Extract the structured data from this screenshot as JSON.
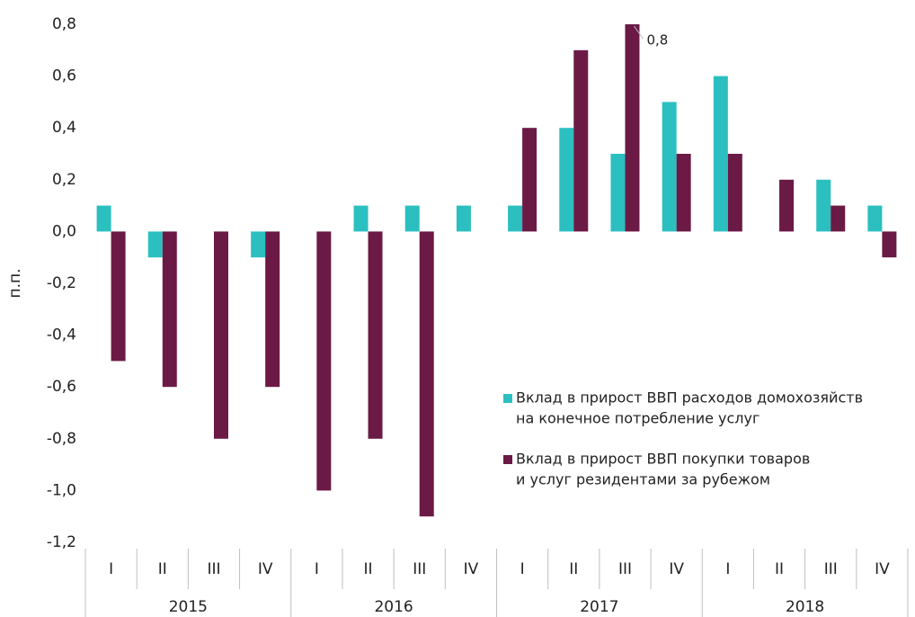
{
  "chart_data": {
    "type": "bar",
    "y_label": "п.п.",
    "categories": [
      "I",
      "II",
      "III",
      "IV",
      "I",
      "II",
      "III",
      "IV",
      "I",
      "II",
      "III",
      "IV",
      "I",
      "II",
      "III",
      "IV"
    ],
    "x_groups": [
      "2015",
      "2016",
      "2017",
      "2018"
    ],
    "series": [
      {
        "name": "Вклад в прирост ВВП расходов домохозяйств на конечное потребление услуг",
        "name_lines": [
          "Вклад в прирост ВВП расходов домохозяйств",
          "на конечное потребление услуг"
        ],
        "color": "#2bbfc0",
        "values": [
          0.1,
          -0.1,
          0,
          -0.1,
          0,
          0.1,
          0.1,
          0.1,
          0.1,
          0.4,
          0.3,
          0.5,
          0.6,
          0,
          0.2,
          0.1
        ]
      },
      {
        "name": "Вклад в прирост ВВП покупки товаров и услуг резидентами за рубежом",
        "name_lines": [
          "Вклад в прирост ВВП покупки товаров",
          "и услуг резидентами за рубежом"
        ],
        "color": "#6b1a45",
        "values": [
          -0.5,
          -0.6,
          -0.8,
          -0.6,
          -1.0,
          -0.8,
          -1.1,
          0,
          0.4,
          0.7,
          0.8,
          0.3,
          0.3,
          0.2,
          0.1,
          -0.1
        ]
      }
    ],
    "annotations": [
      "0,8"
    ],
    "ylim": [
      -1.2,
      0.8
    ],
    "yticks": [
      {
        "value": -1.2,
        "label": "-1,2"
      },
      {
        "value": -1.0,
        "label": "-1,0"
      },
      {
        "value": -0.8,
        "label": "-0,8"
      },
      {
        "value": -0.6,
        "label": "-0,6"
      },
      {
        "value": -0.4,
        "label": "-0,4"
      },
      {
        "value": -0.2,
        "label": "-0,2"
      },
      {
        "value": 0,
        "label": "0,0"
      },
      {
        "value": 0.2,
        "label": "0,2"
      },
      {
        "value": 0.4,
        "label": "0,4"
      },
      {
        "value": 0.6,
        "label": "0,6"
      },
      {
        "value": 0.8,
        "label": "0,8"
      }
    ]
  }
}
